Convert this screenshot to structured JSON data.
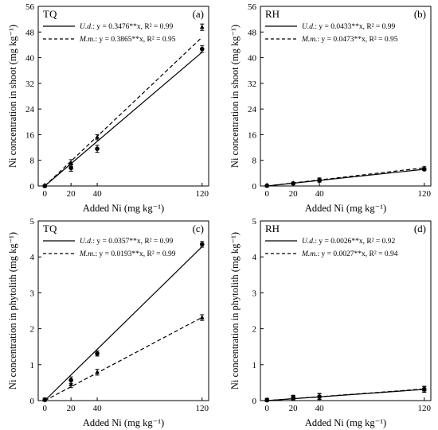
{
  "chart_data": [
    {
      "type": "scatter",
      "panel_label": "(a)",
      "site": "TQ",
      "ylabel": "Ni concentration in shoot (mg kg⁻¹)",
      "xlabel": "Added Ni (mg kg⁻¹)",
      "xlim": [
        -5,
        125
      ],
      "ylim": [
        0,
        56
      ],
      "xticks": [
        0,
        20,
        40,
        120
      ],
      "yticks": [
        0,
        8,
        16,
        24,
        32,
        40,
        48,
        56
      ],
      "series": [
        {
          "name": "U.d.",
          "style": "solid",
          "marker": "circle",
          "slope": 0.3476,
          "equation": "y = 0.3476**x, R² = 0.99",
          "points": [
            {
              "x": 0,
              "y": 0.0,
              "err": 0.3
            },
            {
              "x": 20,
              "y": 5.6,
              "err": 1.0
            },
            {
              "x": 40,
              "y": 11.6,
              "err": 1.1
            },
            {
              "x": 120,
              "y": 42.7,
              "err": 1.0
            }
          ]
        },
        {
          "name": "M.m.",
          "style": "dashed",
          "marker": "triangle",
          "slope": 0.3865,
          "equation": "y = 0.3865**x, R² = 0.95",
          "points": [
            {
              "x": 0,
              "y": 0.1,
              "err": 0.3
            },
            {
              "x": 20,
              "y": 7.2,
              "err": 1.0
            },
            {
              "x": 40,
              "y": 15.2,
              "err": 0.8
            },
            {
              "x": 120,
              "y": 49.5,
              "err": 1.0
            }
          ]
        }
      ]
    },
    {
      "type": "scatter",
      "panel_label": "(b)",
      "site": "RH",
      "ylabel": "Ni concentration in shoot (mg kg⁻¹)",
      "xlabel": "Added Ni (mg kg⁻¹)",
      "xlim": [
        -5,
        125
      ],
      "ylim": [
        0,
        56
      ],
      "xticks": [
        0,
        20,
        40,
        120
      ],
      "yticks": [
        0,
        8,
        16,
        24,
        32,
        40,
        48,
        56
      ],
      "series": [
        {
          "name": "U.d.",
          "style": "solid",
          "marker": "circle",
          "slope": 0.0433,
          "equation": "y = 0.0433**x, R² = 0.99",
          "points": [
            {
              "x": 0,
              "y": 0.1,
              "err": 0.2
            },
            {
              "x": 20,
              "y": 0.8,
              "err": 0.3
            },
            {
              "x": 40,
              "y": 1.7,
              "err": 0.5
            },
            {
              "x": 120,
              "y": 5.2,
              "err": 0.4
            }
          ]
        },
        {
          "name": "M.m.",
          "style": "dashed",
          "marker": "triangle",
          "slope": 0.0473,
          "equation": "y = 0.0473**x, R² = 0.95",
          "points": [
            {
              "x": 0,
              "y": 0.1,
              "err": 0.2
            },
            {
              "x": 20,
              "y": 0.9,
              "err": 0.3
            },
            {
              "x": 40,
              "y": 2.0,
              "err": 0.5
            },
            {
              "x": 120,
              "y": 5.6,
              "err": 0.4
            }
          ]
        }
      ]
    },
    {
      "type": "scatter",
      "panel_label": "(c)",
      "site": "TQ",
      "ylabel": "Ni concentration in phytolith (mg kg⁻¹)",
      "xlabel": "Added Ni (mg kg⁻¹)",
      "xlim": [
        -5,
        125
      ],
      "ylim": [
        0,
        5
      ],
      "xticks": [
        0,
        20,
        40,
        120
      ],
      "yticks": [
        0,
        1,
        2,
        3,
        4,
        5
      ],
      "series": [
        {
          "name": "U.d.",
          "style": "solid",
          "marker": "circle",
          "slope": 0.0357,
          "equation": "y = 0.0357**x, R² = 0.99",
          "points": [
            {
              "x": 0,
              "y": 0.02,
              "err": 0.05
            },
            {
              "x": 20,
              "y": 0.57,
              "err": 0.09
            },
            {
              "x": 40,
              "y": 1.31,
              "err": 0.07
            },
            {
              "x": 120,
              "y": 4.35,
              "err": 0.08
            }
          ]
        },
        {
          "name": "M.m.",
          "style": "dashed",
          "marker": "triangle",
          "slope": 0.0193,
          "equation": "y = 0.0193**x, R² = 0.99",
          "points": [
            {
              "x": 0,
              "y": 0.02,
              "err": 0.05
            },
            {
              "x": 20,
              "y": 0.45,
              "err": 0.09
            },
            {
              "x": 40,
              "y": 0.79,
              "err": 0.08
            },
            {
              "x": 120,
              "y": 2.31,
              "err": 0.08
            }
          ]
        }
      ]
    },
    {
      "type": "scatter",
      "panel_label": "(d)",
      "site": "RH",
      "ylabel": "Ni concentration in phytolith (mg kg⁻¹)",
      "xlabel": "Added Ni (mg kg⁻¹)",
      "xlim": [
        -5,
        125
      ],
      "ylim": [
        0,
        5
      ],
      "xticks": [
        0,
        20,
        40,
        120
      ],
      "yticks": [
        0,
        1,
        2,
        3,
        4,
        5
      ],
      "series": [
        {
          "name": "U.d.",
          "style": "solid",
          "marker": "circle",
          "slope": 0.0026,
          "equation": "y = 0.0026**x, R² = 0.92",
          "points": [
            {
              "x": 0,
              "y": 0.01,
              "err": 0.05
            },
            {
              "x": 20,
              "y": 0.09,
              "err": 0.06
            },
            {
              "x": 40,
              "y": 0.11,
              "err": 0.08
            },
            {
              "x": 120,
              "y": 0.32,
              "err": 0.08
            }
          ]
        },
        {
          "name": "M.m.",
          "style": "dashed",
          "marker": "triangle",
          "slope": 0.0027,
          "equation": "y = 0.0027**x, R² = 0.94",
          "points": [
            {
              "x": 0,
              "y": 0.01,
              "err": 0.05
            },
            {
              "x": 20,
              "y": 0.08,
              "err": 0.06
            },
            {
              "x": 40,
              "y": 0.12,
              "err": 0.08
            },
            {
              "x": 120,
              "y": 0.31,
              "err": 0.08
            }
          ]
        }
      ]
    }
  ]
}
